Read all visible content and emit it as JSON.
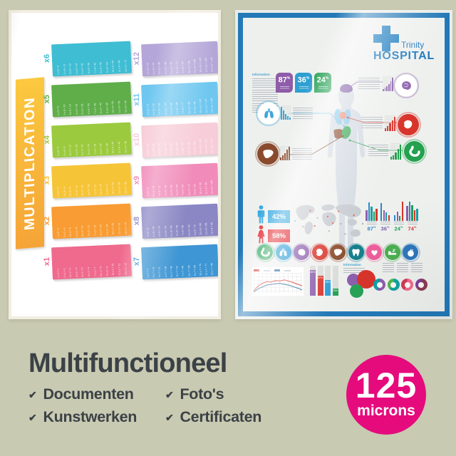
{
  "background_color": "#c9cab2",
  "left_poster": {
    "title": "MULTIPLICATION",
    "cards": [
      {
        "label": "x6",
        "color": "#3fbdd3",
        "equations": [
          "1 x 6 = 6",
          "2 x 6 = 12",
          "3 x 6 = 18",
          "4 x 6 = 24",
          "5 x 6 = 30",
          "6 x 6 = 36",
          "7 x 6 = 42",
          "8 x 6 = 48",
          "9 x 6 = 54",
          "10 x 6 = 60",
          "11 x 6 = 66",
          "12 x 6 = 72"
        ]
      },
      {
        "label": "x12",
        "color": "#b4a6d8",
        "equations": [
          "1 x 12 = 12",
          "2 x 12 = 24",
          "3 x 12 = 36",
          "4 x 12 = 48",
          "5 x 12 = 60",
          "6 x 12 = 72",
          "7 x 12 = 84",
          "8 x 12 = 96",
          "9 x 12 = 108",
          "10 x 12 = 120",
          "11 x 12 = 132",
          "12 x 12 = 144"
        ]
      },
      {
        "label": "x5",
        "color": "#5fae4a",
        "equations": [
          "1 x 5 = 5",
          "2 x 5 = 10",
          "3 x 5 = 15",
          "4 x 5 = 20",
          "5 x 5 = 25",
          "6 x 5 = 30",
          "7 x 5 = 35",
          "8 x 5 = 40",
          "9 x 5 = 45",
          "10 x 5 = 50",
          "11 x 5 = 55",
          "12 x 5 = 60"
        ]
      },
      {
        "label": "x11",
        "color": "#6fc7f0",
        "equations": [
          "1 x 11 = 11",
          "2 x 11 = 22",
          "3 x 11 = 33",
          "4 x 11 = 44",
          "5 x 11 = 55",
          "6 x 11 = 66",
          "7 x 11 = 77",
          "8 x 11 = 88",
          "9 x 11 = 99",
          "10 x 11 = 110",
          "11 x 11 = 121",
          "12 x 11 = 132"
        ]
      },
      {
        "label": "x4",
        "color": "#9bca3e",
        "equations": [
          "1 x 4 = 4",
          "2 x 4 = 8",
          "3 x 4 = 12",
          "4 x 4 = 16",
          "5 x 4 = 20",
          "6 x 4 = 24",
          "7 x 4 = 28",
          "8 x 4 = 32",
          "9 x 4 = 36",
          "10 x 4 = 40",
          "11 x 4 = 44",
          "12 x 4 = 48"
        ]
      },
      {
        "label": "x10",
        "color": "#f7cdd9",
        "equations": [
          "1 x 10 = 10",
          "2 x 10 = 20",
          "3 x 10 = 30",
          "4 x 10 = 40",
          "5 x 10 = 50",
          "6 x 10 = 60",
          "7 x 10 = 70",
          "8 x 10 = 80",
          "9 x 10 = 90",
          "10 x 10 = 100",
          "11 x 10 = 110",
          "12 x 10 = 120"
        ]
      },
      {
        "label": "x3",
        "color": "#f6c437",
        "equations": [
          "1 x 3 = 3",
          "2 x 3 = 6",
          "3 x 3 = 9",
          "4 x 3 = 12",
          "5 x 3 = 15",
          "6 x 3 = 18",
          "7 x 3 = 21",
          "8 x 3 = 24",
          "9 x 3 = 27",
          "10 x 3 = 30",
          "11 x 3 = 33",
          "12 x 3 = 36"
        ]
      },
      {
        "label": "x9",
        "color": "#f18cba",
        "equations": [
          "1 x 9 = 9",
          "2 x 9 = 18",
          "3 x 9 = 27",
          "4 x 9 = 36",
          "5 x 9 = 45",
          "6 x 9 = 54",
          "7 x 9 = 63",
          "8 x 9 = 72",
          "9 x 9 = 81",
          "10 x 9 = 90",
          "11 x 9 = 99",
          "12 x 9 = 108"
        ]
      },
      {
        "label": "x2",
        "color": "#f89c33",
        "equations": [
          "1 x 2 = 2",
          "2 x 2 = 4",
          "3 x 2 = 6",
          "4 x 2 = 8",
          "5 x 2 = 10",
          "6 x 2 = 12",
          "7 x 2 = 14",
          "8 x 2 = 16",
          "9 x 2 = 18",
          "10 x 2 = 20",
          "11 x 2 = 22",
          "12 x 2 = 24"
        ]
      },
      {
        "label": "x8",
        "color": "#8a87c4",
        "equations": [
          "1 x 8 = 8",
          "2 x 8 = 16",
          "3 x 8 = 24",
          "4 x 8 = 32",
          "5 x 8 = 40",
          "6 x 8 = 48",
          "7 x 8 = 56",
          "8 x 8 = 64",
          "9 x 8 = 72",
          "10 x 8 = 80",
          "11 x 8 = 88",
          "12 x 8 = 96"
        ]
      },
      {
        "label": "x1",
        "color": "#ef6a8d",
        "equations": [
          "1 x 1 = 1",
          "2 x 1 = 2",
          "3 x 1 = 3",
          "4 x 1 = 4",
          "5 x 1 = 5",
          "6 x 1 = 6",
          "7 x 1 = 7",
          "8 x 1 = 8",
          "9 x 1 = 9",
          "10 x 1 = 10",
          "11 x 1 = 11",
          "12 x 1 = 12"
        ]
      },
      {
        "label": "x7",
        "color": "#3e96d4",
        "equations": [
          "1 x 7 = 7",
          "2 x 7 = 14",
          "3 x 7 = 21",
          "4 x 7 = 28",
          "5 x 7 = 35",
          "6 x 7 = 42",
          "7 x 7 = 49",
          "8 x 7 = 56",
          "9 x 7 = 63",
          "10 x 7 = 70",
          "11 x 7 = 77",
          "12 x 7 = 84"
        ]
      }
    ]
  },
  "right_poster": {
    "frame_color": "#2379b7",
    "brand": {
      "line1": "Trinity",
      "line2": "HOSPITAL",
      "text_color": "#1b77be",
      "cross_color": "#1f7ec0"
    },
    "info_heading_top": "Information",
    "info_heading_bottom": "Information",
    "badges": [
      {
        "value": "87",
        "unit": "%",
        "color": "#8e5ca8"
      },
      {
        "value": "36",
        "unit": "%",
        "color": "#2f9fd2"
      },
      {
        "value": "24",
        "unit": "%",
        "color": "#29a257"
      }
    ],
    "callouts": {
      "brain": {
        "color": "#8d5fae",
        "stairs": [
          14,
          22,
          32,
          48,
          68,
          92
        ]
      },
      "lungs": {
        "color": "#3ea7dd",
        "stairs": [
          92,
          64,
          42,
          26,
          14
        ]
      },
      "heart": {
        "color": "#d8342b",
        "stairs": [
          18,
          30,
          48,
          70,
          92
        ]
      },
      "liver": {
        "color": "#8a4a2c",
        "stairs": [
          20,
          34,
          52,
          74,
          95
        ]
      },
      "stomach": {
        "color": "#23a14f",
        "stairs": [
          16,
          28,
          45,
          66,
          90
        ]
      }
    },
    "gender": {
      "male": {
        "value": "42%",
        "color": "#2ca5e0"
      },
      "female": {
        "value": "58%",
        "color": "#e31e24"
      }
    },
    "stat_groups": [
      {
        "value": "87",
        "unit": "%",
        "label_color": "#2e86c6",
        "bars": [
          {
            "h": 55,
            "c": "#8d5fae"
          },
          {
            "h": 92,
            "c": "#2e86c6"
          },
          {
            "h": 70,
            "c": "#12a0a5"
          },
          {
            "h": 45,
            "c": "#1d9e59"
          },
          {
            "h": 60,
            "c": "#d8342b"
          }
        ]
      },
      {
        "value": "36",
        "unit": "%",
        "label_color": "#7d5ea8",
        "bars": [
          {
            "h": 90,
            "c": "#2e86c6"
          },
          {
            "h": 55,
            "c": "#8d5fae"
          },
          {
            "h": 42,
            "c": "#12a0a5"
          },
          {
            "h": 30,
            "c": "#d8342b"
          }
        ]
      },
      {
        "value": "24",
        "unit": "%",
        "label_color": "#1d9e59",
        "bars": [
          {
            "h": 30,
            "c": "#2e86c6"
          },
          {
            "h": 45,
            "c": "#8d5fae"
          },
          {
            "h": 25,
            "c": "#1d9e59"
          },
          {
            "h": 95,
            "c": "#d8342b"
          }
        ]
      },
      {
        "value": "74",
        "unit": "%",
        "label_color": "#d8342b",
        "bars": [
          {
            "h": 75,
            "c": "#8d5fae"
          },
          {
            "h": 95,
            "c": "#2e86c6"
          },
          {
            "h": 80,
            "c": "#1d9e59"
          },
          {
            "h": 55,
            "c": "#d8342b"
          },
          {
            "h": 62,
            "c": "#12a0a5"
          }
        ]
      }
    ],
    "organ_icons": [
      {
        "name": "stomach",
        "color": "#27a257"
      },
      {
        "name": "lungs",
        "color": "#2b9cd6"
      },
      {
        "name": "brain",
        "color": "#8d5fae"
      },
      {
        "name": "kidney",
        "color": "#d8342b"
      },
      {
        "name": "liver",
        "color": "#8a4a2c"
      },
      {
        "name": "tooth",
        "color": "#177f8e"
      },
      {
        "name": "heart",
        "color": "#ee5f9b"
      },
      {
        "name": "sleep",
        "color": "#4cae52"
      },
      {
        "name": "apple",
        "color": "#2d77bc"
      }
    ],
    "line_chart": {
      "series": [
        {
          "name": "series-red",
          "color": "#d8342b",
          "values": [
            14,
            40,
            56,
            64,
            62,
            70,
            68,
            74,
            66,
            60,
            50,
            42
          ]
        },
        {
          "name": "series-blue",
          "color": "#2e6da4",
          "values": [
            8,
            25,
            36,
            46,
            49,
            53,
            55,
            50,
            45,
            37,
            29,
            20
          ]
        }
      ]
    },
    "bar_columns": [
      {
        "label": "85%",
        "h": 85,
        "c": "#8d5fae"
      },
      {
        "label": "67%",
        "h": 67,
        "c": "#d8342b"
      },
      {
        "label": "52%",
        "h": 52,
        "c": "#2b9cd6"
      },
      {
        "label": "23%",
        "h": 23,
        "c": "#27a257"
      }
    ],
    "bubbles": [
      "#8d5fae",
      "#d8342b",
      "#27a257"
    ],
    "donuts": [
      {
        "c1": "#8d5fae",
        "c2": "#12a0a5",
        "p": 55
      },
      {
        "c1": "#0fa3a0",
        "c2": "#53b74e",
        "p": 62
      },
      {
        "c1": "#f06a8c",
        "c2": "#d03a57",
        "p": 58
      },
      {
        "c1": "#8e3a56",
        "c2": "#7d3f98",
        "p": 65
      }
    ]
  },
  "caption": {
    "title": "Multifunctioneel",
    "check_glyph": "✔",
    "items": [
      "Documenten",
      "Kunstwerken",
      "Foto's",
      "Certificaten"
    ],
    "badge": {
      "value": "125",
      "unit": "microns",
      "color": "#e50b7d"
    },
    "text_color": "#3b4246"
  }
}
